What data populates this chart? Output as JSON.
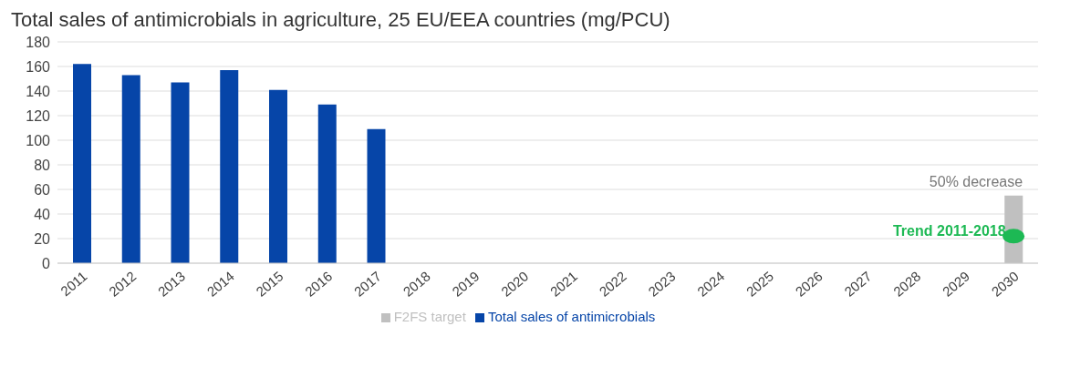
{
  "chart_data": {
    "type": "bar",
    "title": "Total sales of antimicrobials in agriculture, 25 EU/EEA countries (mg/PCU)",
    "categories": [
      "2011",
      "2012",
      "2013",
      "2014",
      "2015",
      "2016",
      "2017",
      "2018",
      "2019",
      "2020",
      "2021",
      "2022",
      "2023",
      "2024",
      "2025",
      "2026",
      "2027",
      "2028",
      "2029",
      "2030"
    ],
    "series": [
      {
        "name": "Total sales of antimicrobials",
        "color": "#0645a8",
        "values": [
          162,
          153,
          147,
          157,
          141,
          129,
          109,
          null,
          null,
          null,
          null,
          null,
          null,
          null,
          null,
          null,
          null,
          null,
          null,
          null
        ]
      },
      {
        "name": "F2FS target",
        "color": "#c0c0c0",
        "values": [
          null,
          null,
          null,
          null,
          null,
          null,
          null,
          null,
          null,
          null,
          null,
          null,
          null,
          null,
          null,
          null,
          null,
          null,
          null,
          55
        ]
      },
      {
        "name": "Trend 2011-2018",
        "type": "scatter",
        "color": "#1db954",
        "values": [
          null,
          null,
          null,
          null,
          null,
          null,
          null,
          null,
          null,
          null,
          null,
          null,
          null,
          null,
          null,
          null,
          null,
          null,
          null,
          22
        ]
      }
    ],
    "stacked": true,
    "annotations": [
      {
        "text": "50% decrease",
        "x": "2030",
        "y": 55
      }
    ],
    "ylim": [
      0,
      180
    ],
    "yticks": [
      0,
      20,
      40,
      60,
      80,
      100,
      120,
      140,
      160,
      180
    ],
    "grid": "y",
    "legend": "bottom",
    "marker": "circle"
  }
}
